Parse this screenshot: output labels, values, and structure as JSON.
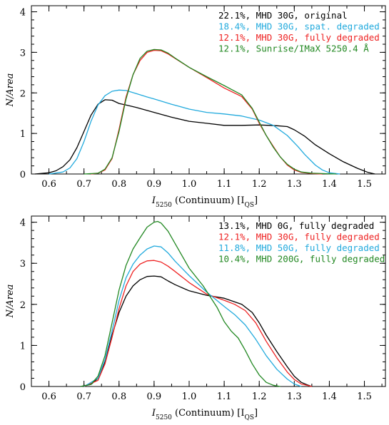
{
  "chart_data": [
    {
      "type": "line",
      "xlabel": "I5250 (Continuum) [IQS]",
      "xlabel_parts": {
        "symbol": "I",
        "sub": "5250",
        "mid": " (Continuum) [I",
        "unit_sub": "QS",
        "end": "]"
      },
      "ylabel": "N/Area",
      "xlim": [
        0.55,
        1.56
      ],
      "ylim": [
        0,
        4.15
      ],
      "x_ticks": [
        "0.6",
        "0.7",
        "0.8",
        "0.9",
        "1.0",
        "1.1",
        "1.2",
        "1.3",
        "1.4",
        "1.5"
      ],
      "y_ticks": [
        "0",
        "1",
        "2",
        "3",
        "4"
      ],
      "legend_position": "top-right",
      "series": [
        {
          "name": "22.1%, MHD 30G, original",
          "color": "#000000",
          "x": [
            0.56,
            0.6,
            0.62,
            0.64,
            0.66,
            0.68,
            0.7,
            0.72,
            0.74,
            0.76,
            0.78,
            0.8,
            0.82,
            0.85,
            0.9,
            0.95,
            1.0,
            1.05,
            1.1,
            1.15,
            1.2,
            1.25,
            1.28,
            1.3,
            1.33,
            1.36,
            1.4,
            1.44,
            1.48,
            1.51,
            1.53
          ],
          "y": [
            0.0,
            0.03,
            0.08,
            0.18,
            0.35,
            0.65,
            1.05,
            1.45,
            1.72,
            1.83,
            1.82,
            1.74,
            1.7,
            1.64,
            1.52,
            1.4,
            1.3,
            1.25,
            1.2,
            1.2,
            1.21,
            1.19,
            1.17,
            1.09,
            0.93,
            0.72,
            0.5,
            0.3,
            0.14,
            0.04,
            0.0
          ]
        },
        {
          "name": "18.4%, MHD 30G, spat. degraded",
          "color": "#22aadd",
          "x": [
            0.6,
            0.64,
            0.66,
            0.68,
            0.7,
            0.72,
            0.74,
            0.76,
            0.78,
            0.8,
            0.82,
            0.85,
            0.88,
            0.9,
            0.95,
            1.0,
            1.05,
            1.1,
            1.15,
            1.2,
            1.24,
            1.28,
            1.31,
            1.33,
            1.36,
            1.38,
            1.4,
            1.43
          ],
          "y": [
            0.0,
            0.05,
            0.15,
            0.38,
            0.8,
            1.3,
            1.7,
            1.93,
            2.04,
            2.07,
            2.06,
            1.98,
            1.9,
            1.85,
            1.72,
            1.6,
            1.52,
            1.48,
            1.43,
            1.33,
            1.2,
            0.95,
            0.68,
            0.48,
            0.22,
            0.1,
            0.03,
            0.0
          ]
        },
        {
          "name": "12.1%, MHD 30G, fully degraded",
          "color": "#ee2222",
          "x": [
            0.72,
            0.74,
            0.76,
            0.78,
            0.8,
            0.82,
            0.84,
            0.86,
            0.88,
            0.9,
            0.92,
            0.94,
            0.96,
            1.0,
            1.05,
            1.1,
            1.15,
            1.18,
            1.2,
            1.22,
            1.24,
            1.26,
            1.28,
            1.3,
            1.32,
            1.35,
            1.38
          ],
          "y": [
            0.0,
            0.02,
            0.1,
            0.38,
            1.1,
            1.9,
            2.45,
            2.8,
            3.0,
            3.05,
            3.04,
            2.96,
            2.85,
            2.63,
            2.38,
            2.12,
            1.91,
            1.6,
            1.25,
            0.95,
            0.68,
            0.42,
            0.22,
            0.1,
            0.04,
            0.01,
            0.0
          ]
        },
        {
          "name": "12.1%, Sunrise/IMaX 5250.4 Å",
          "color": "#228822",
          "x": [
            0.7,
            0.74,
            0.76,
            0.78,
            0.8,
            0.82,
            0.84,
            0.86,
            0.88,
            0.9,
            0.92,
            0.94,
            0.96,
            1.0,
            1.05,
            1.1,
            1.15,
            1.18,
            1.2,
            1.22,
            1.24,
            1.26,
            1.28,
            1.3,
            1.32,
            1.35,
            1.38,
            1.42
          ],
          "y": [
            0.0,
            0.02,
            0.12,
            0.4,
            1.05,
            1.85,
            2.45,
            2.85,
            3.03,
            3.07,
            3.06,
            2.98,
            2.86,
            2.63,
            2.4,
            2.18,
            1.95,
            1.62,
            1.28,
            0.95,
            0.66,
            0.42,
            0.24,
            0.12,
            0.05,
            0.02,
            0.01,
            0.0
          ]
        }
      ]
    },
    {
      "type": "line",
      "xlabel": "I5250 (Continuum) [IQS]",
      "xlabel_parts": {
        "symbol": "I",
        "sub": "5250",
        "mid": " (Continuum) [I",
        "unit_sub": "QS",
        "end": "]"
      },
      "ylabel": "N/Area",
      "xlim": [
        0.55,
        1.56
      ],
      "ylim": [
        0,
        4.15
      ],
      "x_ticks": [
        "0.6",
        "0.7",
        "0.8",
        "0.9",
        "1.0",
        "1.1",
        "1.2",
        "1.3",
        "1.4",
        "1.5"
      ],
      "y_ticks": [
        "0",
        "1",
        "2",
        "3",
        "4"
      ],
      "legend_position": "top-right",
      "series": [
        {
          "name": "13.1%, MHD 0G, fully degraded",
          "color": "#000000",
          "x": [
            0.69,
            0.72,
            0.74,
            0.76,
            0.78,
            0.8,
            0.82,
            0.84,
            0.86,
            0.88,
            0.9,
            0.92,
            0.94,
            0.96,
            1.0,
            1.05,
            1.1,
            1.15,
            1.18,
            1.2,
            1.22,
            1.25,
            1.28,
            1.3,
            1.32,
            1.34,
            1.35
          ],
          "y": [
            0.0,
            0.05,
            0.2,
            0.6,
            1.25,
            1.8,
            2.2,
            2.45,
            2.6,
            2.68,
            2.69,
            2.67,
            2.57,
            2.48,
            2.33,
            2.22,
            2.15,
            2.0,
            1.8,
            1.55,
            1.25,
            0.85,
            0.48,
            0.25,
            0.1,
            0.03,
            0.0
          ]
        },
        {
          "name": "12.1%, MHD 30G, fully degraded",
          "color": "#ee2222",
          "x": [
            0.7,
            0.74,
            0.76,
            0.78,
            0.8,
            0.82,
            0.84,
            0.86,
            0.88,
            0.9,
            0.92,
            0.94,
            0.96,
            1.0,
            1.05,
            1.1,
            1.13,
            1.16,
            1.19,
            1.22,
            1.25,
            1.28,
            1.3,
            1.32,
            1.34,
            1.35
          ],
          "y": [
            0.0,
            0.15,
            0.55,
            1.2,
            1.9,
            2.45,
            2.8,
            2.98,
            3.06,
            3.07,
            3.03,
            2.93,
            2.8,
            2.53,
            2.25,
            2.1,
            2.0,
            1.85,
            1.55,
            1.1,
            0.7,
            0.35,
            0.17,
            0.06,
            0.02,
            0.0
          ]
        },
        {
          "name": "11.8%, MHD 50G, fully degraded",
          "color": "#22aadd",
          "x": [
            0.7,
            0.74,
            0.76,
            0.78,
            0.8,
            0.82,
            0.84,
            0.86,
            0.88,
            0.9,
            0.92,
            0.94,
            0.96,
            1.0,
            1.05,
            1.1,
            1.13,
            1.16,
            1.19,
            1.22,
            1.25,
            1.28,
            1.3,
            1.32
          ],
          "y": [
            0.0,
            0.2,
            0.65,
            1.35,
            2.1,
            2.65,
            2.98,
            3.2,
            3.35,
            3.42,
            3.4,
            3.25,
            3.05,
            2.7,
            2.3,
            1.95,
            1.75,
            1.5,
            1.15,
            0.75,
            0.42,
            0.18,
            0.06,
            0.0
          ]
        },
        {
          "name": "10.4%, MHD 200G, fully degraded",
          "color": "#228822",
          "x": [
            0.69,
            0.72,
            0.74,
            0.76,
            0.78,
            0.8,
            0.82,
            0.84,
            0.86,
            0.88,
            0.9,
            0.91,
            0.92,
            0.94,
            0.96,
            1.0,
            1.04,
            1.08,
            1.1,
            1.12,
            1.14,
            1.16,
            1.18,
            1.2,
            1.22,
            1.24,
            1.26
          ],
          "y": [
            0.0,
            0.05,
            0.25,
            0.75,
            1.55,
            2.35,
            2.95,
            3.35,
            3.62,
            3.88,
            4.0,
            4.02,
            3.98,
            3.78,
            3.48,
            2.88,
            2.45,
            1.92,
            1.58,
            1.35,
            1.18,
            0.88,
            0.55,
            0.28,
            0.1,
            0.03,
            0.0
          ]
        }
      ]
    }
  ]
}
